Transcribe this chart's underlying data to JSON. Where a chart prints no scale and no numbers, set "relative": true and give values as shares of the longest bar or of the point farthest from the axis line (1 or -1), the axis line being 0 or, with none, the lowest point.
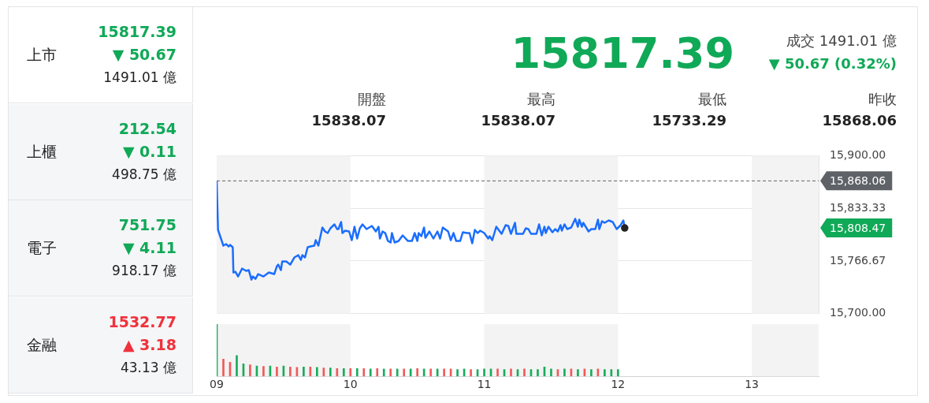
{
  "chart_data": [
    {
      "type": "other",
      "annotations": [
        "上市",
        "15817.39",
        "▼ 50.67",
        "1491.01 億",
        "上櫃",
        "212.54",
        "▼ 0.11",
        "498.75 億",
        "電子",
        "751.75",
        "▼ 4.11",
        "918.17 億",
        "金融",
        "1532.77",
        "▲ 3.18",
        "43.13 億",
        "15817.39",
        "成交 1491.01 億",
        "▼ 50.67 (0.32%)",
        "開盤",
        "15838.07",
        "最高",
        "15838.07",
        "最低",
        "15733.29",
        "昨收",
        "15868.06"
      ],
      "colors": [
        "#222222",
        "#10a957",
        "#10a957",
        "#222222",
        "#222222",
        "#10a957",
        "#10a957",
        "#222222",
        "#222222",
        "#10a957",
        "#10a957",
        "#222222",
        "#222222",
        "#f0323c",
        "#f0323c",
        "#222222",
        "#10a957",
        "#444444",
        "#10a957",
        "#444444",
        "#222222",
        "#444444",
        "#222222",
        "#444444",
        "#222222",
        "#444444",
        "#222222"
      ]
    },
    {
      "type": "line",
      "xlim": [
        9,
        13.5
      ],
      "ylim": [
        15700,
        15900
      ],
      "yticks": [
        {
          "value": 15700,
          "label": "15,700.00"
        },
        {
          "value": 15766.67,
          "label": "15,766.67"
        },
        {
          "value": 15833.33,
          "label": "15,833.33"
        },
        {
          "value": 15900,
          "label": "15,900.00"
        }
      ],
      "grid": "y",
      "tick_labels": "y",
      "legend": false,
      "marker": "none",
      "line_style": "solid",
      "series": [
        {
          "color": "#1a6dff",
          "x": [
            9.0,
            9.01,
            9.05,
            9.07,
            9.09,
            9.1,
            9.12,
            9.125,
            9.14,
            9.16,
            9.19,
            9.22,
            9.24,
            9.26,
            9.27,
            9.29,
            9.31,
            9.35,
            9.39,
            9.43,
            9.45,
            9.46,
            9.48,
            9.49,
            9.52,
            9.55,
            9.58,
            9.61,
            9.63,
            9.64,
            9.66,
            9.68,
            9.7,
            9.73,
            9.74,
            9.76,
            9.79,
            9.81,
            9.83,
            9.85,
            9.88,
            9.9,
            9.91,
            9.93,
            9.94,
            9.96,
            9.99,
            10.01,
            10.03,
            10.05,
            10.07,
            10.09,
            10.12,
            10.16,
            10.19,
            10.21,
            10.22,
            10.24,
            10.26,
            10.28,
            10.3,
            10.31,
            10.33,
            10.36,
            10.39,
            10.43,
            10.46,
            10.48,
            10.5,
            10.51,
            10.53,
            10.55,
            10.56,
            10.59,
            10.62,
            10.65,
            10.67,
            10.69,
            10.73,
            10.75,
            10.77,
            10.79,
            10.82,
            10.84,
            10.87,
            10.89,
            10.91,
            10.93,
            10.95,
            10.97,
            11.0,
            11.03,
            11.04,
            11.06,
            11.09,
            11.13,
            11.16,
            11.18,
            11.2,
            11.23,
            11.24,
            11.29,
            11.31,
            11.33,
            11.35,
            11.39,
            11.41,
            11.43,
            11.45,
            11.46,
            11.48,
            11.51,
            11.53,
            11.55,
            11.57,
            11.58,
            11.6,
            11.62,
            11.65,
            11.68,
            11.7,
            11.71,
            11.73,
            11.74,
            11.78,
            11.8,
            11.83,
            11.85,
            11.86,
            11.88,
            11.9,
            11.93,
            11.96,
            11.99,
            12.02,
            12.04,
            12.05
          ],
          "values": [
            15868,
            15806,
            15786,
            15788,
            15785,
            15787,
            15784,
            15752,
            15753,
            15747,
            15757,
            15754,
            15755,
            15743,
            15747,
            15744,
            15750,
            15747,
            15752,
            15750,
            15760,
            15762,
            15755,
            15766,
            15766,
            15762,
            15771,
            15774,
            15768,
            15774,
            15771,
            15784,
            15785,
            15786,
            15793,
            15786,
            15809,
            15804,
            15802,
            15808,
            15813,
            15807,
            15807,
            15816,
            15802,
            15805,
            15804,
            15793,
            15810,
            15795,
            15808,
            15813,
            15807,
            15811,
            15804,
            15810,
            15795,
            15804,
            15802,
            15792,
            15790,
            15802,
            15790,
            15792,
            15799,
            15792,
            15792,
            15802,
            15792,
            15802,
            15798,
            15809,
            15796,
            15804,
            15795,
            15804,
            15795,
            15809,
            15804,
            15793,
            15802,
            15792,
            15792,
            15803,
            15802,
            15802,
            15789,
            15806,
            15802,
            15805,
            15802,
            15795,
            15798,
            15793,
            15810,
            15801,
            15812,
            15811,
            15801,
            15815,
            15801,
            15801,
            15808,
            15807,
            15801,
            15801,
            15813,
            15799,
            15810,
            15802,
            15810,
            15803,
            15807,
            15804,
            15812,
            15805,
            15813,
            15807,
            15809,
            15820,
            15810,
            15819,
            15810,
            15815,
            15804,
            15807,
            15807,
            15819,
            15807,
            15817,
            15815,
            15818,
            15816,
            15807,
            15812,
            15818,
            15808.47
          ]
        },
        {
          "type": "scatter",
          "color": "#222222",
          "marker": "circle",
          "x": [
            12.05
          ],
          "values": [
            15808.47
          ]
        }
      ],
      "ref_lines": [
        {
          "axis": "y",
          "value": 15868.06,
          "label": "15,868.06",
          "color": "#5f6368",
          "line_style": "dashed"
        }
      ],
      "bands": [
        {
          "axis": "x",
          "from": 9,
          "to": 10,
          "color": "#f3f3f3"
        },
        {
          "axis": "x",
          "from": 11,
          "to": 12,
          "color": "#f3f3f3"
        },
        {
          "axis": "x",
          "from": 13,
          "to": 13.5,
          "color": "#f3f3f3"
        }
      ],
      "annotations": [
        "15,808.47"
      ]
    },
    {
      "type": "bar",
      "relative": true,
      "xlim": [
        9,
        13.5
      ],
      "xticks": [
        {
          "value": 9,
          "label": "09"
        },
        10,
        11,
        12,
        13
      ],
      "tick_labels": "x",
      "grid": false,
      "legend": false,
      "x": [
        9.0,
        9.05,
        9.1,
        9.15,
        9.2,
        9.25,
        9.3,
        9.35,
        9.4,
        9.45,
        9.5,
        9.55,
        9.6,
        9.65,
        9.7,
        9.75,
        9.8,
        9.85,
        9.9,
        9.95,
        10.0,
        10.05,
        10.1,
        10.15,
        10.2,
        10.25,
        10.3,
        10.35,
        10.4,
        10.45,
        10.5,
        10.55,
        10.6,
        10.65,
        10.7,
        10.75,
        10.8,
        10.85,
        10.9,
        10.95,
        11.0,
        11.05,
        11.1,
        11.15,
        11.2,
        11.25,
        11.3,
        11.35,
        11.4,
        11.45,
        11.5,
        11.55,
        11.6,
        11.65,
        11.7,
        11.75,
        11.8,
        11.85,
        11.9,
        11.95,
        12.0
      ],
      "values": [
        1,
        0.33,
        0.27,
        0.4,
        0.24,
        0.22,
        0.2,
        0.19,
        0.2,
        0.18,
        0.2,
        0.18,
        0.17,
        0.18,
        0.18,
        0.17,
        0.16,
        0.16,
        0.15,
        0.15,
        0.15,
        0.15,
        0.15,
        0.14,
        0.15,
        0.14,
        0.14,
        0.14,
        0.14,
        0.14,
        0.15,
        0.14,
        0.14,
        0.14,
        0.14,
        0.14,
        0.13,
        0.14,
        0.13,
        0.13,
        0.14,
        0.14,
        0.14,
        0.13,
        0.14,
        0.13,
        0.14,
        0.13,
        0.13,
        0.18,
        0.14,
        0.13,
        0.14,
        0.14,
        0.13,
        0.14,
        0.13,
        0.14,
        0.13,
        0.13,
        0.13
      ],
      "colors": [
        "#1aab5c",
        "#f05a5a",
        "#f05a5a",
        "#1aab5c",
        "#1aab5c",
        "#f05a5a",
        "#1aab5c",
        "#f05a5a",
        "#1aab5c",
        "#f05a5a",
        "#1aab5c",
        "#f05a5a",
        "#f05a5a",
        "#1aab5c",
        "#f05a5a",
        "#1aab5c",
        "#f05a5a",
        "#1aab5c",
        "#f05a5a",
        "#1aab5c",
        "#f05a5a",
        "#1aab5c",
        "#f05a5a",
        "#1aab5c",
        "#f05a5a",
        "#1aab5c",
        "#f05a5a",
        "#1aab5c",
        "#f05a5a",
        "#1aab5c",
        "#f05a5a",
        "#1aab5c",
        "#f05a5a",
        "#1aab5c",
        "#f05a5a",
        "#f05a5a",
        "#1aab5c",
        "#1aab5c",
        "#f05a5a",
        "#1aab5c",
        "#1aab5c",
        "#1aab5c",
        "#f05a5a",
        "#1aab5c",
        "#f05a5a",
        "#1aab5c",
        "#f05a5a",
        "#1aab5c",
        "#1aab5c",
        "#1aab5c",
        "#1aab5c",
        "#f05a5a",
        "#1aab5c",
        "#f05a5a",
        "#1aab5c",
        "#f05a5a",
        "#1aab5c",
        "#f05a5a",
        "#1aab5c",
        "#1aab5c",
        "#1aab5c"
      ],
      "bands": [
        {
          "axis": "x",
          "from": 9,
          "to": 10,
          "color": "#f3f3f3"
        },
        {
          "axis": "x",
          "from": 11,
          "to": 12,
          "color": "#f3f3f3"
        },
        {
          "axis": "x",
          "from": 13,
          "to": 13.5,
          "color": "#f3f3f3"
        }
      ]
    }
  ]
}
